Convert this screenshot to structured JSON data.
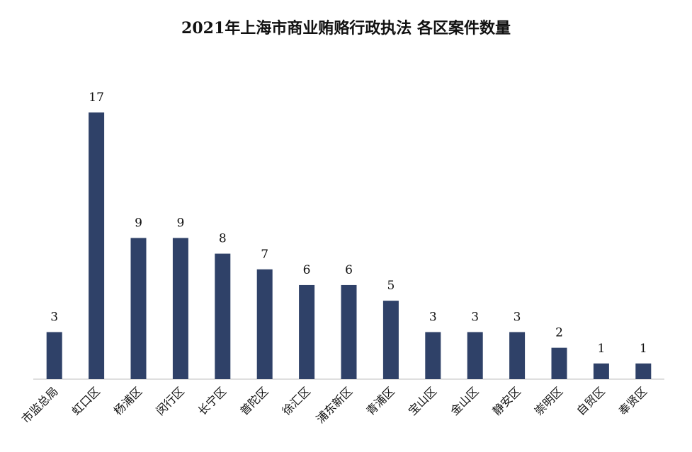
{
  "chart_data": {
    "type": "bar",
    "title": "2021年上海市商业贿赂行政执法 各区案件数量",
    "xlabel": "",
    "ylabel": "",
    "categories": [
      "市监总局",
      "虹口区",
      "杨浦区",
      "闵行区",
      "长宁区",
      "普陀区",
      "徐汇区",
      "浦东新区",
      "青浦区",
      "宝山区",
      "金山区",
      "静安区",
      "崇明区",
      "自贸区",
      "奉贤区"
    ],
    "values": [
      3,
      17,
      9,
      9,
      8,
      7,
      6,
      6,
      5,
      3,
      3,
      3,
      2,
      1,
      1
    ],
    "ylim": [
      0,
      17
    ],
    "grid": false,
    "data_labels": true,
    "bar_color": "#2f4168"
  }
}
